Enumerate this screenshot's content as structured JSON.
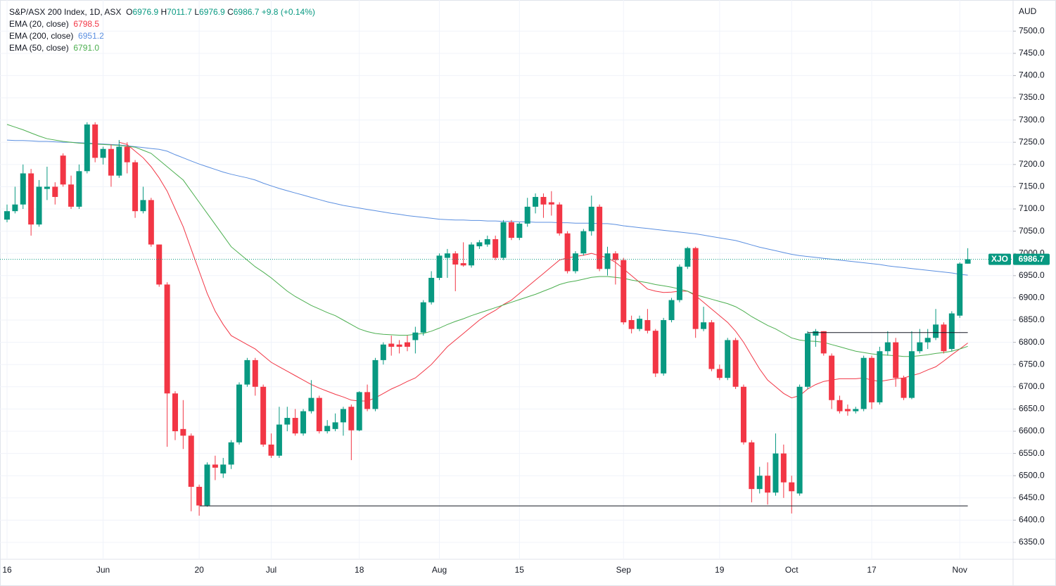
{
  "chart_data": {
    "type": "candlestick",
    "title": "S&P/ASX 200 Index, 1D, ASX",
    "quote": [
      {
        "label": "O",
        "value": 6976.9
      },
      {
        "label": "H",
        "value": 7011.7
      },
      {
        "label": "L",
        "value": 6976.9
      },
      {
        "label": "C",
        "value": 6986.7
      }
    ],
    "change": "+9.8",
    "change_pct": "(+0.14%)",
    "currency": "AUD",
    "symbol_short": "XJO",
    "up_color": "#089981",
    "down_color": "#f23645",
    "grid": true,
    "categories": [
      "16",
      null,
      null,
      null,
      null,
      null,
      null,
      null,
      null,
      null,
      null,
      null,
      "Jun",
      null,
      null,
      null,
      null,
      null,
      null,
      null,
      null,
      null,
      null,
      null,
      "20",
      null,
      null,
      null,
      null,
      null,
      null,
      null,
      null,
      "Jul",
      null,
      null,
      null,
      null,
      null,
      null,
      null,
      null,
      null,
      null,
      "18",
      null,
      null,
      null,
      null,
      null,
      null,
      null,
      null,
      null,
      "Aug",
      null,
      null,
      null,
      null,
      null,
      null,
      null,
      null,
      null,
      "15",
      null,
      null,
      null,
      null,
      null,
      null,
      null,
      null,
      null,
      null,
      null,
      null,
      "Sep",
      null,
      null,
      null,
      null,
      null,
      null,
      null,
      null,
      null,
      null,
      null,
      "19",
      null,
      null,
      null,
      null,
      null,
      null,
      null,
      null,
      "Oct",
      null,
      null,
      null,
      null,
      null,
      null,
      null,
      null,
      null,
      "17",
      null,
      null,
      null,
      null,
      null,
      null,
      null,
      null,
      null,
      null,
      "Nov",
      null
    ],
    "open": [
      7076,
      7095,
      7110,
      7180,
      7065,
      7145,
      7150,
      7220,
      7155,
      7105,
      7185,
      7290,
      7215,
      7235,
      7175,
      7240,
      7205,
      7095,
      7120,
      7020,
      6930,
      6685,
      6605,
      6590,
      6475,
      6433,
      6525,
      6505,
      6525,
      6575,
      6705,
      6760,
      6700,
      6570,
      6545,
      6615,
      6630,
      6595,
      6645,
      6675,
      6600,
      6605,
      6620,
      6655,
      6602,
      6688,
      6650,
      6760,
      6797,
      6795,
      6800,
      6805,
      6822,
      6890,
      6945,
      6990,
      7000,
      6978,
      6973,
      7016,
      7020,
      7032,
      6990,
      7070,
      7035,
      7067,
      7105,
      7127,
      7115,
      7110,
      7045,
      6960,
      7000,
      7050,
      7105,
      6965,
      7000,
      6985,
      6850,
      6830,
      6850,
      6826,
      6730,
      6850,
      6895,
      6970,
      7012,
      6830,
      6845,
      6740,
      6720,
      6805,
      6700,
      6575,
      6470,
      6500,
      6462,
      6550,
      6485,
      6460,
      6700,
      6815,
      6825,
      6770,
      6670,
      6650,
      6645,
      6650,
      6765,
      6665,
      6780,
      6800,
      6720,
      6675,
      6780,
      6800,
      6810,
      6840,
      6785,
      6860,
      6976.9
    ],
    "high": [
      7110,
      7150,
      7200,
      7190,
      7165,
      7195,
      7160,
      7225,
      7175,
      7200,
      7295,
      7295,
      7240,
      7245,
      7255,
      7250,
      7210,
      7150,
      7125,
      7020,
      6935,
      6690,
      6670,
      6595,
      6480,
      6530,
      6545,
      6540,
      6580,
      6710,
      6765,
      6765,
      6705,
      6595,
      6655,
      6655,
      6650,
      6650,
      6715,
      6680,
      6625,
      6640,
      6655,
      6660,
      6690,
      6705,
      6765,
      6800,
      6815,
      6805,
      6815,
      6835,
      6895,
      6960,
      7000,
      7010,
      7005,
      7025,
      7025,
      7030,
      7040,
      7040,
      7075,
      7075,
      7070,
      7125,
      7135,
      7135,
      7140,
      7115,
      7050,
      7005,
      7055,
      7130,
      7110,
      7015,
      7005,
      6990,
      6860,
      6860,
      6875,
      6830,
      6855,
      6900,
      6975,
      7015,
      7015,
      6880,
      6850,
      6750,
      6810,
      6810,
      6705,
      6580,
      6520,
      6530,
      6595,
      6570,
      6500,
      6705,
      6825,
      6830,
      6825,
      6775,
      6680,
      6660,
      6655,
      6770,
      6770,
      6790,
      6825,
      6810,
      6725,
      6825,
      6830,
      6830,
      6875,
      6845,
      6870,
      6980,
      7011.7
    ],
    "low": [
      7070,
      7090,
      7100,
      7040,
      7060,
      7120,
      7110,
      7150,
      7100,
      7100,
      7180,
      7205,
      7200,
      7150,
      7170,
      7180,
      7080,
      7090,
      7015,
      6925,
      6565,
      6580,
      6560,
      6420,
      6410,
      6430,
      6490,
      6495,
      6515,
      6570,
      6700,
      6680,
      6565,
      6540,
      6540,
      6600,
      6590,
      6590,
      6640,
      6595,
      6595,
      6600,
      6590,
      6535,
      6600,
      6645,
      6645,
      6750,
      6770,
      6775,
      6780,
      6775,
      6815,
      6885,
      6940,
      6945,
      6915,
      6970,
      6968,
      7010,
      7015,
      6985,
      6985,
      7030,
      7030,
      7060,
      7090,
      7080,
      7085,
      7040,
      6955,
      6955,
      6995,
      7040,
      6960,
      6950,
      6930,
      6840,
      6820,
      6825,
      6820,
      6722,
      6725,
      6845,
      6890,
      6965,
      6810,
      6825,
      6735,
      6715,
      6715,
      6695,
      6570,
      6440,
      6460,
      6435,
      6455,
      6450,
      6415,
      6455,
      6695,
      6790,
      6770,
      6650,
      6640,
      6635,
      6640,
      6645,
      6650,
      6660,
      6770,
      6700,
      6670,
      6672,
      6775,
      6785,
      6805,
      6775,
      6780,
      6855,
      6976.9
    ],
    "close": [
      7095,
      7110,
      7180,
      7065,
      7150,
      7150,
      7127,
      7155,
      7105,
      7185,
      7290,
      7215,
      7235,
      7175,
      7240,
      7205,
      7095,
      7120,
      7020,
      6930,
      6685,
      6600,
      6590,
      6475,
      6433,
      6525,
      6518,
      6525,
      6575,
      6705,
      6760,
      6700,
      6570,
      6545,
      6615,
      6630,
      6595,
      6645,
      6675,
      6600,
      6612,
      6620,
      6650,
      6602,
      6688,
      6650,
      6760,
      6795,
      6790,
      6790,
      6790,
      6822,
      6890,
      6945,
      6995,
      7000,
      6975,
      6973,
      7020,
      7025,
      7032,
      6990,
      7070,
      7035,
      7067,
      7105,
      7127,
      7110,
      7110,
      7045,
      6960,
      7000,
      7050,
      7105,
      6965,
      7000,
      6985,
      6845,
      6830,
      6853,
      6826,
      6730,
      6850,
      6895,
      6970,
      7012,
      6830,
      6845,
      6740,
      6720,
      6805,
      6700,
      6575,
      6470,
      6500,
      6462,
      6550,
      6485,
      6465,
      6700,
      6820,
      6825,
      6775,
      6670,
      6645,
      6645,
      6650,
      6765,
      6665,
      6780,
      6800,
      6720,
      6675,
      6780,
      6800,
      6810,
      6840,
      6780,
      6865,
      6977,
      6986.7
    ],
    "series": [
      {
        "name": "EMA (20, close)",
        "legend_value": "6798.5",
        "color": "#f23645",
        "values": [
          null,
          null,
          null,
          null,
          null,
          null,
          null,
          null,
          null,
          null,
          null,
          null,
          null,
          null,
          7250,
          7245,
          7230,
          7215,
          7195,
          7170,
          7140,
          7100,
          7060,
          7010,
          6960,
          6910,
          6870,
          6840,
          6815,
          6805,
          6795,
          6785,
          6770,
          6755,
          6745,
          6735,
          6725,
          6715,
          6705,
          6697,
          6690,
          6683,
          6677,
          6670,
          6668,
          6668,
          6675,
          6685,
          6695,
          6703,
          6712,
          6720,
          6735,
          6750,
          6770,
          6790,
          6805,
          6820,
          6835,
          6850,
          6862,
          6872,
          6885,
          6895,
          6910,
          6925,
          6940,
          6955,
          6970,
          6985,
          6990,
          6993,
          6996,
          7000,
          6995,
          6990,
          6980,
          6965,
          6950,
          6935,
          6920,
          6915,
          6912,
          6913,
          6915,
          6915,
          6905,
          6890,
          6875,
          6860,
          6845,
          6825,
          6800,
          6770,
          6740,
          6715,
          6700,
          6685,
          6675,
          6680,
          6695,
          6705,
          6712,
          6715,
          6718,
          6718,
          6718,
          6720,
          6715,
          6712,
          6715,
          6718,
          6720,
          6725,
          6730,
          6738,
          6745,
          6758,
          6772,
          6785,
          6798.5
        ]
      },
      {
        "name": "EMA (200, close)",
        "legend_value": "6951.2",
        "color": "#5b8fe0",
        "values": [
          7255,
          7254,
          7254,
          7253,
          7252,
          7252,
          7251,
          7250,
          7250,
          7249,
          7248,
          7247,
          7246,
          7245,
          7244,
          7242,
          7240,
          7238,
          7236,
          7234,
          7230,
          7222,
          7215,
          7208,
          7201,
          7195,
          7189,
          7183,
          7178,
          7174,
          7170,
          7165,
          7158,
          7152,
          7146,
          7141,
          7136,
          7131,
          7126,
          7121,
          7116,
          7112,
          7108,
          7105,
          7102,
          7099,
          7096,
          7093,
          7090,
          7088,
          7085,
          7083,
          7081,
          7079,
          7077,
          7076,
          7075,
          7075,
          7074,
          7074,
          7073,
          7073,
          7072,
          7072,
          7071,
          7071,
          7070,
          7070,
          7070,
          7069,
          7069,
          7068,
          7068,
          7068,
          7067,
          7067,
          7065,
          7062,
          7060,
          7058,
          7056,
          7054,
          7052,
          7050,
          7048,
          7046,
          7044,
          7041,
          7038,
          7035,
          7032,
          7029,
          7024,
          7019,
          7014,
          7010,
          7006,
          7002,
          6998,
          6995,
          6993,
          6991,
          6989,
          6987,
          6985,
          6983,
          6981,
          6979,
          6977,
          6975,
          6972,
          6970,
          6968,
          6966,
          6964,
          6962,
          6960,
          6958,
          6956,
          6953,
          6951.2
        ]
      },
      {
        "name": "EMA (50, close)",
        "legend_value": "6791.0",
        "color": "#4caf50",
        "values": [
          7290,
          7284,
          7278,
          7271,
          7264,
          7258,
          7255,
          7252,
          7250,
          7248,
          7247,
          7246,
          7245,
          7244,
          7243,
          7241,
          7239,
          7232,
          7225,
          7210,
          7195,
          7180,
          7165,
          7140,
          7115,
          7090,
          7065,
          7040,
          7015,
          7000,
          6985,
          6970,
          6958,
          6945,
          6930,
          6915,
          6903,
          6893,
          6883,
          6875,
          6867,
          6860,
          6850,
          6840,
          6830,
          6824,
          6820,
          6818,
          6817,
          6816,
          6816,
          6818,
          6820,
          6825,
          6832,
          6840,
          6847,
          6853,
          6860,
          6866,
          6872,
          6878,
          6884,
          6890,
          6896,
          6902,
          6908,
          6915,
          6922,
          6930,
          6935,
          6938,
          6942,
          6946,
          6948,
          6948,
          6946,
          6944,
          6940,
          6937,
          6934,
          6930,
          6927,
          6924,
          6920,
          6915,
          6907,
          6902,
          6897,
          6892,
          6887,
          6880,
          6870,
          6858,
          6848,
          6838,
          6830,
          6820,
          6810,
          6805,
          6803,
          6802,
          6800,
          6795,
          6790,
          6785,
          6780,
          6777,
          6774,
          6772,
          6771,
          6770,
          6768,
          6768,
          6770,
          6772,
          6775,
          6777,
          6780,
          6785,
          6791
        ]
      }
    ],
    "levels": [
      6432,
      6822
    ],
    "ylim": [
      6312,
      7570
    ],
    "yticks": [
      {
        "value": 6350,
        "label": "6350.0"
      },
      {
        "value": 6400,
        "label": "6400.0"
      },
      {
        "value": 6450,
        "label": "6450.0"
      },
      {
        "value": 6500,
        "label": "6500.0"
      },
      {
        "value": 6550,
        "label": "6550.0"
      },
      {
        "value": 6600,
        "label": "6600.0"
      },
      {
        "value": 6650,
        "label": "6650.0"
      },
      {
        "value": 6700,
        "label": "6700.0"
      },
      {
        "value": 6750,
        "label": "6750.0"
      },
      {
        "value": 6800,
        "label": "6800.0"
      },
      {
        "value": 6850,
        "label": "6850.0"
      },
      {
        "value": 6900,
        "label": "6900.0"
      },
      {
        "value": 6950,
        "label": "6950.0"
      },
      {
        "value": 7000,
        "label": "7000.0"
      },
      {
        "value": 7050,
        "label": "7050.0"
      },
      {
        "value": 7100,
        "label": "7100.0"
      },
      {
        "value": 7150,
        "label": "7150.0"
      },
      {
        "value": 7200,
        "label": "7200.0"
      },
      {
        "value": 7250,
        "label": "7250.0"
      },
      {
        "value": 7300,
        "label": "7300.0"
      },
      {
        "value": 7350,
        "label": "7350.0"
      },
      {
        "value": 7400,
        "label": "7400.0"
      },
      {
        "value": 7450,
        "label": "7450.0"
      },
      {
        "value": 7500,
        "label": "7500.0"
      }
    ]
  }
}
